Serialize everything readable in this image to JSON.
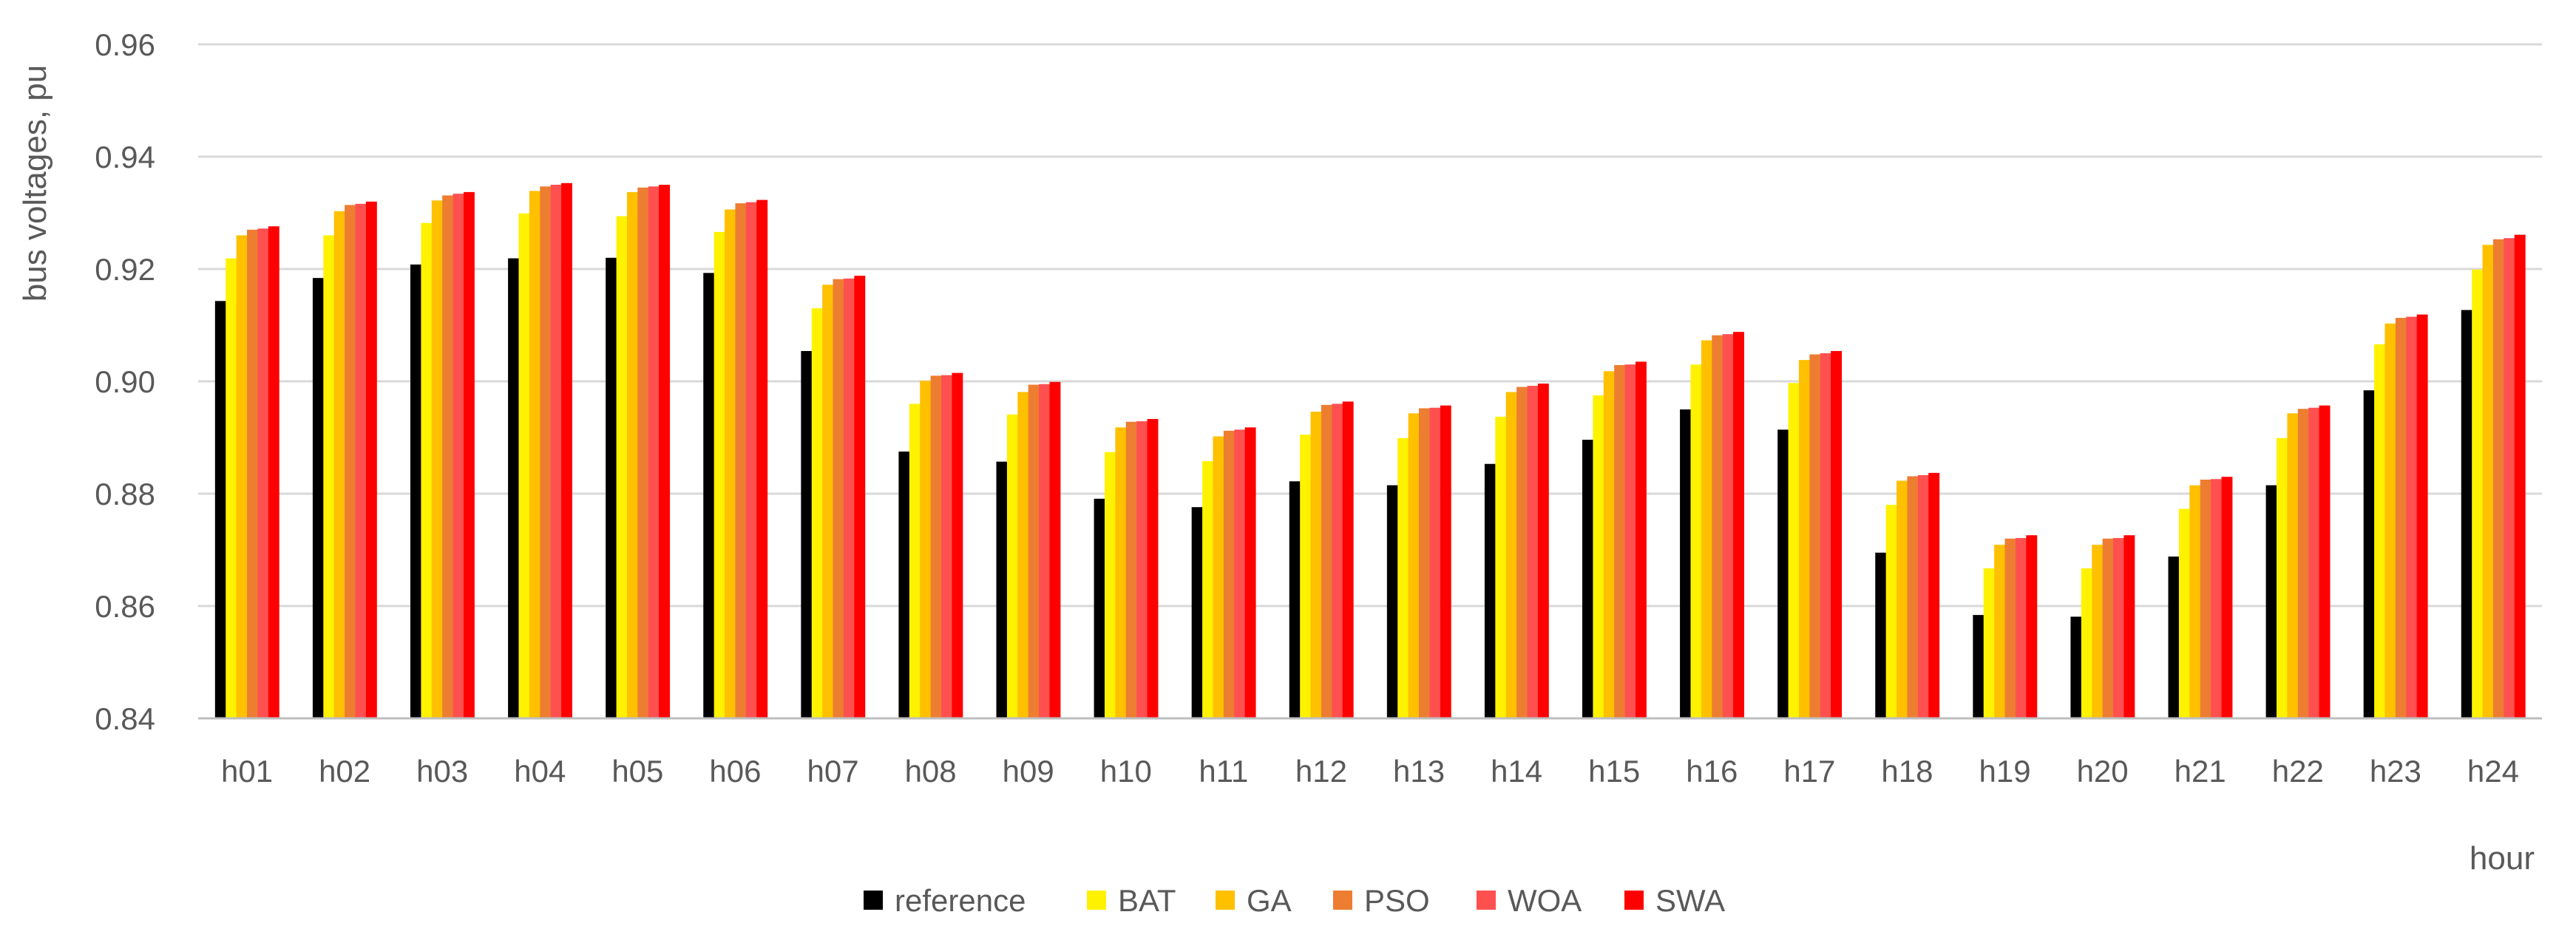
{
  "chart_data": {
    "type": "bar",
    "title": "",
    "xlabel": "hour",
    "ylabel": "bus voltages, pu",
    "ylim": [
      0.84,
      0.96
    ],
    "yticks": [
      "0.84",
      "0.86",
      "0.88",
      "0.90",
      "0.92",
      "0.94",
      "0.96"
    ],
    "grid": true,
    "legend_position": "bottom",
    "categories": [
      "h01",
      "h02",
      "h03",
      "h04",
      "h05",
      "h06",
      "h07",
      "h08",
      "h09",
      "h10",
      "h11",
      "h12",
      "h13",
      "h14",
      "h15",
      "h16",
      "h17",
      "h18",
      "h19",
      "h20",
      "h21",
      "h22",
      "h23",
      "h24"
    ],
    "series": [
      {
        "name": "reference",
        "color": "#000000",
        "values": [
          0.9143,
          0.9184,
          0.9208,
          0.9219,
          0.922,
          0.9193,
          0.9054,
          0.8875,
          0.8857,
          0.8791,
          0.8776,
          0.8822,
          0.8815,
          0.8853,
          0.8896,
          0.895,
          0.8914,
          0.8695,
          0.8584,
          0.8581,
          0.8688,
          0.8815,
          0.8984,
          0.9127
        ]
      },
      {
        "name": "BAT",
        "color": "#FFF200",
        "values": [
          0.9219,
          0.926,
          0.9282,
          0.9299,
          0.9294,
          0.9266,
          0.913,
          0.896,
          0.8941,
          0.8874,
          0.8858,
          0.8905,
          0.8899,
          0.8937,
          0.8975,
          0.903,
          0.8997,
          0.878,
          0.8667,
          0.8667,
          0.8773,
          0.8899,
          0.9066,
          0.9199
        ]
      },
      {
        "name": "GA",
        "color": "#FFC000",
        "values": [
          0.926,
          0.9303,
          0.9322,
          0.9339,
          0.9337,
          0.9306,
          0.9172,
          0.9001,
          0.8981,
          0.8918,
          0.8902,
          0.8946,
          0.8943,
          0.8981,
          0.9018,
          0.9073,
          0.9038,
          0.8823,
          0.8709,
          0.8709,
          0.8815,
          0.8943,
          0.9103,
          0.9243
        ]
      },
      {
        "name": "PSO",
        "color": "#ED7D31",
        "values": [
          0.927,
          0.9314,
          0.9331,
          0.9347,
          0.9345,
          0.9317,
          0.9182,
          0.901,
          0.8994,
          0.8928,
          0.8912,
          0.8958,
          0.8952,
          0.899,
          0.9029,
          0.9082,
          0.9048,
          0.8831,
          0.872,
          0.872,
          0.8825,
          0.8951,
          0.9113,
          0.9253
        ]
      },
      {
        "name": "WOA",
        "color": "#FF5050",
        "values": [
          0.9272,
          0.9316,
          0.9334,
          0.935,
          0.9347,
          0.9319,
          0.9183,
          0.9011,
          0.8995,
          0.8929,
          0.8914,
          0.896,
          0.8953,
          0.8992,
          0.903,
          0.9084,
          0.905,
          0.8833,
          0.8721,
          0.8721,
          0.8826,
          0.8953,
          0.9115,
          0.9255
        ]
      },
      {
        "name": "SWA",
        "color": "#FF0000",
        "values": [
          0.9276,
          0.932,
          0.9337,
          0.9353,
          0.935,
          0.9323,
          0.9188,
          0.9015,
          0.8999,
          0.8933,
          0.8918,
          0.8964,
          0.8957,
          0.8996,
          0.9035,
          0.9088,
          0.9054,
          0.8837,
          0.8726,
          0.8726,
          0.883,
          0.8957,
          0.9119,
          0.9261
        ]
      }
    ]
  }
}
